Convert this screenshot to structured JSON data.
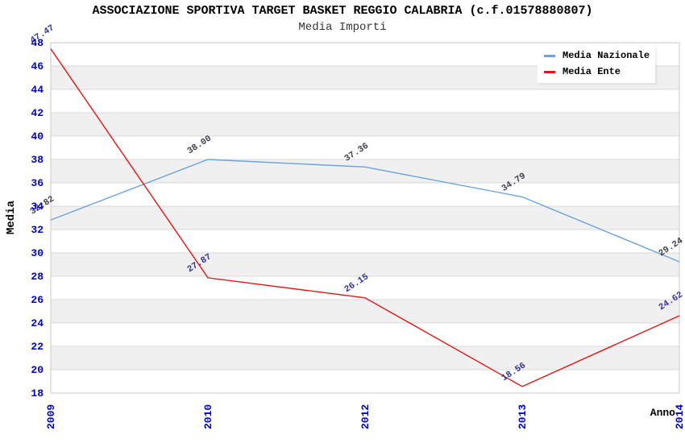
{
  "chart_data": {
    "type": "line",
    "title": "ASSOCIAZIONE SPORTIVA TARGET BASKET REGGIO CALABRIA (c.f.01578880807)",
    "subtitle": "Media Importi",
    "xlabel": "Anno",
    "ylabel": "Media",
    "categories": [
      "2009",
      "2010",
      "2012",
      "2013",
      "2014"
    ],
    "series": [
      {
        "name": "Media Nazionale",
        "color": "#6ba3dd",
        "label_color": "#40404a",
        "values": [
          32.82,
          38.0,
          37.36,
          34.79,
          29.24
        ],
        "labels": [
          "32.82",
          "38.00",
          "37.36",
          "34.79",
          "29.24"
        ]
      },
      {
        "name": "Media Ente",
        "color": "#e41414",
        "label_color": "#333399",
        "values": [
          47.47,
          27.87,
          26.15,
          18.56,
          24.62
        ],
        "labels": [
          "47.47",
          "27.87",
          "26.15",
          "18.56",
          "24.62"
        ]
      }
    ],
    "ylim": [
      18,
      48
    ],
    "ytick_step": 2,
    "yticks": [
      "18",
      "20",
      "22",
      "24",
      "26",
      "28",
      "30",
      "32",
      "34",
      "36",
      "38",
      "40",
      "42",
      "44",
      "46",
      "48"
    ],
    "grid": "horizontal",
    "legend_position": "top-right",
    "colors": {
      "tick_text": "#0000cc",
      "band_light": "#ffffff",
      "band_dark": "#f0f0f0",
      "gridline": "#d9d9d9",
      "frame": "#c9c9c9",
      "axis_title_text": "#000000"
    }
  }
}
